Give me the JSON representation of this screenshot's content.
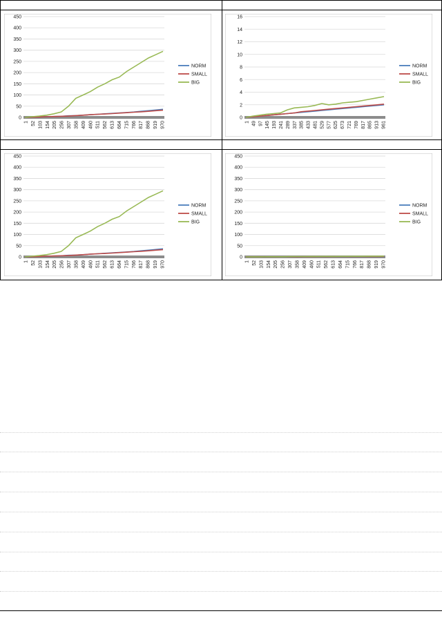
{
  "colors": {
    "norm": "#4a7ebb",
    "small": "#be4b48",
    "big": "#98b954",
    "xaxis_band": "#8c8c8c",
    "grid": "#d9d9d9"
  },
  "chart_data": [
    {
      "type": "line",
      "x_ticks": [
        "1",
        "52",
        "103",
        "154",
        "205",
        "256",
        "307",
        "358",
        "409",
        "460",
        "511",
        "562",
        "613",
        "664",
        "715",
        "766",
        "817",
        "868",
        "919",
        "970"
      ],
      "ylim": [
        0,
        450
      ],
      "y_ticks": [
        0,
        50,
        100,
        150,
        200,
        250,
        300,
        350,
        400,
        450
      ],
      "grid": true,
      "legend": "right",
      "series": [
        {
          "name": "NORM",
          "values": [
            0,
            1,
            2,
            3,
            4,
            5,
            7,
            8,
            10,
            12,
            14,
            16,
            18,
            20,
            22,
            24,
            27,
            30,
            33,
            36
          ]
        },
        {
          "name": "SMALL",
          "values": [
            0,
            1,
            2,
            3,
            4,
            5,
            6,
            8,
            10,
            12,
            14,
            15,
            17,
            19,
            21,
            23,
            25,
            27,
            30,
            32
          ]
        },
        {
          "name": "BIG",
          "values": [
            0,
            3,
            6,
            10,
            16,
            24,
            50,
            85,
            100,
            115,
            135,
            150,
            168,
            180,
            205,
            225,
            245,
            265,
            280,
            295
          ]
        }
      ]
    },
    {
      "type": "line",
      "x_ticks": [
        "1",
        "49",
        "97",
        "145",
        "193",
        "241",
        "289",
        "337",
        "385",
        "433",
        "481",
        "529",
        "577",
        "625",
        "673",
        "721",
        "769",
        "817",
        "865",
        "913",
        "961"
      ],
      "ylim": [
        0,
        16
      ],
      "y_ticks": [
        0,
        2,
        4,
        6,
        8,
        10,
        12,
        14,
        16
      ],
      "grid": true,
      "legend": "right",
      "series": [
        {
          "name": "NORM",
          "values": [
            0,
            0.1,
            0.2,
            0.3,
            0.4,
            0.5,
            0.6,
            0.7,
            0.8,
            0.9,
            1.0,
            1.1,
            1.2,
            1.3,
            1.4,
            1.5,
            1.6,
            1.7,
            1.8,
            1.9,
            2.0
          ]
        },
        {
          "name": "SMALL",
          "values": [
            0,
            0.1,
            0.2,
            0.3,
            0.4,
            0.5,
            0.6,
            0.7,
            0.9,
            1.0,
            1.1,
            1.2,
            1.3,
            1.4,
            1.5,
            1.6,
            1.7,
            1.8,
            1.9,
            2.0,
            2.1
          ]
        },
        {
          "name": "BIG",
          "values": [
            0,
            0.2,
            0.35,
            0.5,
            0.6,
            0.7,
            1.2,
            1.5,
            1.6,
            1.7,
            1.9,
            2.2,
            2.0,
            2.1,
            2.3,
            2.4,
            2.5,
            2.7,
            2.9,
            3.1,
            3.3
          ]
        }
      ]
    },
    {
      "type": "line",
      "x_ticks": [
        "1",
        "52",
        "103",
        "154",
        "205",
        "256",
        "307",
        "358",
        "409",
        "460",
        "511",
        "562",
        "613",
        "664",
        "715",
        "766",
        "817",
        "868",
        "919",
        "970"
      ],
      "ylim": [
        0,
        450
      ],
      "y_ticks": [
        0,
        50,
        100,
        150,
        200,
        250,
        300,
        350,
        400,
        450
      ],
      "grid": true,
      "legend": "right",
      "series": [
        {
          "name": "NORM",
          "values": [
            0,
            1,
            2,
            3,
            4,
            5,
            7,
            8,
            10,
            12,
            14,
            16,
            18,
            20,
            22,
            24,
            27,
            30,
            33,
            36
          ]
        },
        {
          "name": "SMALL",
          "values": [
            0,
            1,
            2,
            3,
            4,
            5,
            6,
            8,
            10,
            12,
            14,
            15,
            17,
            19,
            21,
            23,
            25,
            27,
            30,
            32
          ]
        },
        {
          "name": "BIG",
          "values": [
            0,
            3,
            6,
            10,
            16,
            24,
            50,
            85,
            100,
            115,
            135,
            150,
            168,
            180,
            205,
            225,
            245,
            265,
            280,
            295
          ]
        }
      ]
    },
    {
      "type": "line",
      "x_ticks": [
        "1",
        "52",
        "103",
        "154",
        "205",
        "256",
        "307",
        "358",
        "409",
        "460",
        "511",
        "562",
        "613",
        "664",
        "715",
        "766",
        "817",
        "868",
        "919",
        "970"
      ],
      "ylim": [
        0,
        450
      ],
      "y_ticks": [
        0,
        50,
        100,
        150,
        200,
        250,
        300,
        350,
        400,
        450
      ],
      "grid": true,
      "legend": "right",
      "series": [
        {
          "name": "NORM",
          "values": [
            0,
            0.1,
            0.2,
            0.3,
            0.4,
            0.5,
            0.6,
            0.7,
            0.8,
            0.9,
            1.0,
            1.1,
            1.2,
            1.3,
            1.4,
            1.5,
            1.6,
            1.7,
            1.8,
            2.0
          ]
        },
        {
          "name": "SMALL",
          "values": [
            0,
            0.1,
            0.2,
            0.3,
            0.4,
            0.5,
            0.6,
            0.7,
            0.9,
            1.0,
            1.1,
            1.2,
            1.3,
            1.4,
            1.5,
            1.6,
            1.7,
            1.8,
            1.9,
            2.1
          ]
        },
        {
          "name": "BIG",
          "values": [
            0,
            0.2,
            0.4,
            0.5,
            0.6,
            0.7,
            1.2,
            1.5,
            1.6,
            1.7,
            1.9,
            2.2,
            2.0,
            2.1,
            2.3,
            2.4,
            2.5,
            2.7,
            2.9,
            3.3
          ]
        }
      ]
    }
  ]
}
